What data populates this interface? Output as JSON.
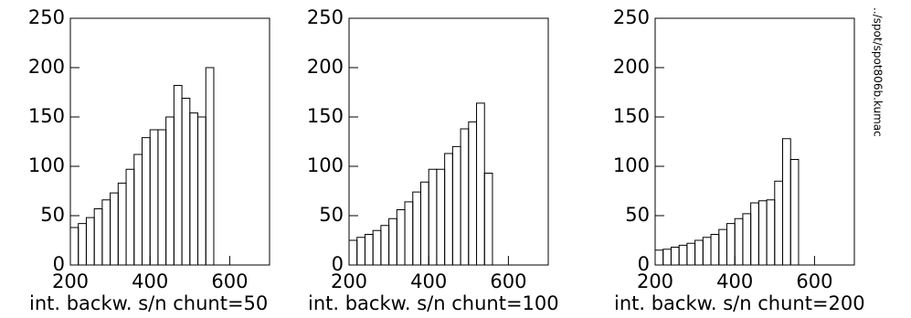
{
  "chart_data": [
    {
      "type": "histogram",
      "xlabel": "int. backw. s/n chunt=50",
      "bins": [
        200,
        220,
        240,
        260,
        280,
        300,
        320,
        340,
        360,
        380,
        400,
        420,
        440,
        460,
        480,
        500,
        520,
        540,
        560
      ],
      "values": [
        38,
        42,
        48,
        57,
        66,
        73,
        83,
        97,
        112,
        129,
        137,
        137,
        150,
        182,
        169,
        154,
        150,
        200
      ],
      "color": "#000000",
      "xlim": [
        200,
        700
      ],
      "ylim": [
        0,
        250
      ],
      "xticks": [
        200,
        400,
        600
      ],
      "yticks": [
        0,
        50,
        100,
        150,
        200,
        250
      ]
    },
    {
      "type": "histogram",
      "xlabel": "int. backw. s/n chunt=100",
      "bins": [
        200,
        220,
        240,
        260,
        280,
        300,
        320,
        340,
        360,
        380,
        400,
        420,
        440,
        460,
        480,
        500,
        520,
        540,
        560
      ],
      "values": [
        25,
        28,
        31,
        35,
        40,
        47,
        56,
        64,
        74,
        84,
        97,
        97,
        113,
        120,
        138,
        145,
        164,
        93
      ],
      "color": "#000000",
      "xlim": [
        200,
        700
      ],
      "ylim": [
        0,
        250
      ],
      "xticks": [
        200,
        400,
        600
      ],
      "yticks": [
        0,
        50,
        100,
        150,
        200,
        250
      ]
    },
    {
      "type": "histogram",
      "xlabel": "int. backw. s/n chunt=200",
      "bins": [
        200,
        220,
        240,
        260,
        280,
        300,
        320,
        340,
        360,
        380,
        400,
        420,
        440,
        460,
        480,
        500,
        520,
        540,
        560
      ],
      "values": [
        15,
        16,
        18,
        20,
        22,
        25,
        28,
        31,
        36,
        42,
        47,
        52,
        63,
        65,
        66,
        85,
        128,
        107
      ],
      "color": "#000000",
      "xlim": [
        200,
        700
      ],
      "ylim": [
        0,
        250
      ],
      "xticks": [
        200,
        400,
        600
      ],
      "yticks": [
        0,
        50,
        100,
        150,
        200,
        250
      ]
    }
  ],
  "side_note": "../spot/spot806b.kumac"
}
